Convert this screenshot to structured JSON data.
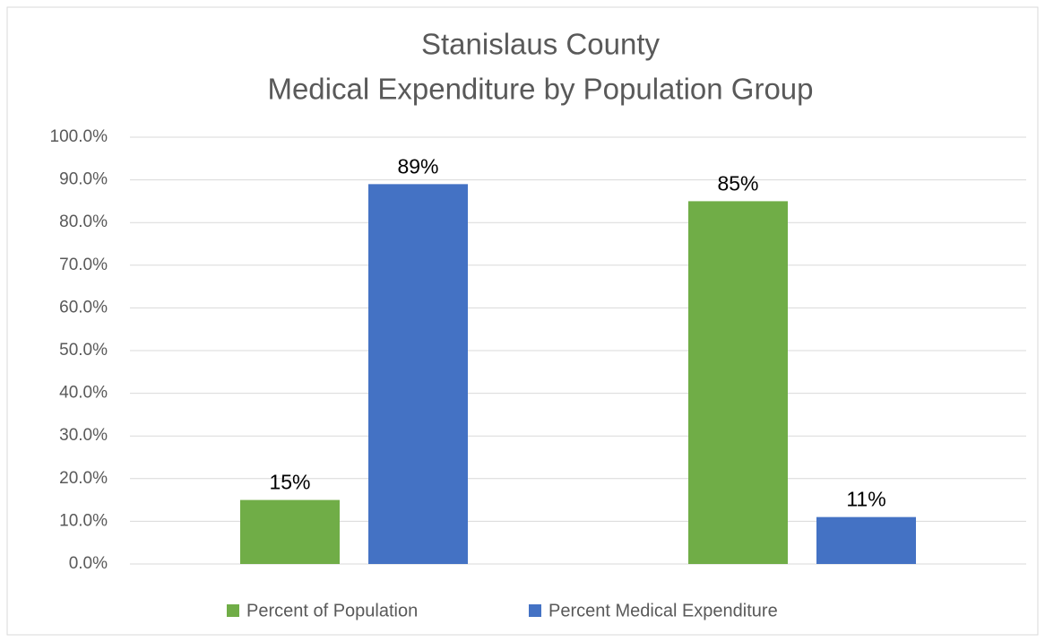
{
  "chart_data": {
    "type": "bar",
    "title": [
      "Stanislaus County",
      "Medical Expenditure by Population Group"
    ],
    "categories": [
      null,
      null
    ],
    "series": [
      {
        "name": "Percent of Population",
        "color": "#70ad47",
        "values": [
          15,
          85
        ],
        "value_labels": [
          "15%",
          "85%"
        ]
      },
      {
        "name": "Percent Medical Expenditure",
        "color": "#4472c4",
        "values": [
          89,
          11
        ],
        "value_labels": [
          "89%",
          "11%"
        ]
      }
    ],
    "ylim": [
      0,
      100
    ],
    "yticks": [
      {
        "value": 0,
        "label": "0.0%"
      },
      {
        "value": 10,
        "label": "10.0%"
      },
      {
        "value": 20,
        "label": "20.0%"
      },
      {
        "value": 30,
        "label": "30.0%"
      },
      {
        "value": 40,
        "label": "40.0%"
      },
      {
        "value": 50,
        "label": "50.0%"
      },
      {
        "value": 60,
        "label": "60.0%"
      },
      {
        "value": 70,
        "label": "70.0%"
      },
      {
        "value": 80,
        "label": "80.0%"
      },
      {
        "value": 90,
        "label": "90.0%"
      },
      {
        "value": 100,
        "label": "100.0%"
      }
    ],
    "grid": true,
    "legend": "bottom"
  }
}
